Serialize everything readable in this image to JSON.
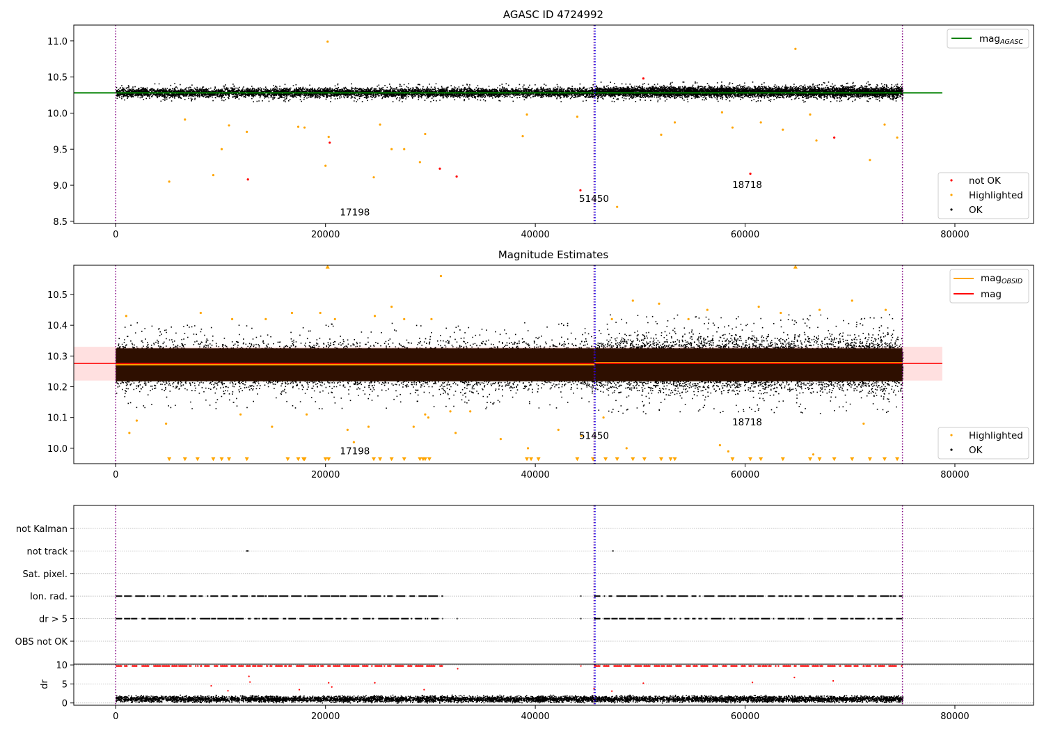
{
  "chart_data": [
    {
      "type": "scatter",
      "title": "AGASC ID 4724992",
      "xlabel": "",
      "ylabel": "",
      "xlim": [
        -4000,
        87500
      ],
      "ylim": [
        8.47,
        11.22
      ],
      "xticks": [
        0,
        20000,
        40000,
        60000,
        80000
      ],
      "yticks": [
        8.5,
        9.0,
        9.5,
        10.0,
        10.5,
        11.0
      ],
      "grid": false,
      "series": [
        {
          "name": "not OK",
          "color": "#ff0000",
          "points": [
            [
              12600,
              9.08
            ],
            [
              20400,
              9.59
            ],
            [
              30900,
              9.23
            ],
            [
              32500,
              9.12
            ],
            [
              44300,
              8.93
            ],
            [
              50300,
              10.48
            ],
            [
              60500,
              9.16
            ],
            [
              68500,
              9.66
            ]
          ]
        },
        {
          "name": "Highlighted",
          "color": "#ffa500",
          "points": [
            [
              5100,
              9.05
            ],
            [
              6600,
              9.91
            ],
            [
              9300,
              9.14
            ],
            [
              10100,
              9.5
            ],
            [
              10800,
              9.83
            ],
            [
              12500,
              9.74
            ],
            [
              17400,
              9.81
            ],
            [
              18000,
              9.8
            ],
            [
              20000,
              9.27
            ],
            [
              20200,
              10.99
            ],
            [
              20300,
              9.67
            ],
            [
              24600,
              9.11
            ],
            [
              25200,
              9.84
            ],
            [
              26300,
              9.5
            ],
            [
              27500,
              9.5
            ],
            [
              29000,
              9.32
            ],
            [
              29500,
              9.71
            ],
            [
              38800,
              9.68
            ],
            [
              39200,
              9.98
            ],
            [
              44000,
              9.95
            ],
            [
              47800,
              8.7
            ],
            [
              52000,
              9.7
            ],
            [
              53300,
              9.87
            ],
            [
              57800,
              10.01
            ],
            [
              58800,
              9.8
            ],
            [
              61500,
              9.87
            ],
            [
              63600,
              9.77
            ],
            [
              64800,
              10.89
            ],
            [
              66200,
              9.98
            ],
            [
              66800,
              9.62
            ],
            [
              71900,
              9.35
            ],
            [
              73300,
              9.84
            ],
            [
              74500,
              9.66
            ]
          ]
        },
        {
          "name": "OK",
          "color": "#000000",
          "band": [
            {
              "x0": 0,
              "x1": 45650,
              "lo": 10.2,
              "hi": 10.38
            },
            {
              "x0": 45650,
              "x1": 75000,
              "lo": 10.2,
              "hi": 10.4
            }
          ]
        },
        {
          "name": "mag_AGASC",
          "color": "#008000",
          "y": 10.28,
          "x0": -4000,
          "x1": 78800
        }
      ],
      "legend": [
        {
          "label": "mag",
          "sub": "AGASC",
          "marker": "line",
          "color": "#008000",
          "location": "top-right"
        },
        {
          "label": "not OK",
          "marker": "dot",
          "color": "#ff0000",
          "location": "bottom-right"
        },
        {
          "label": "Highlighted",
          "marker": "dot",
          "color": "#ffa500",
          "location": "bottom-right"
        },
        {
          "label": "OK",
          "marker": "dot",
          "color": "#000000",
          "location": "bottom-right"
        }
      ],
      "vlines": [
        {
          "x": 0,
          "color": "#800080",
          "style": "dotted"
        },
        {
          "x": 45600,
          "color": "#800080",
          "style": "dotted"
        },
        {
          "x": 45700,
          "color": "#0000ff",
          "style": "dotted"
        },
        {
          "x": 75000,
          "color": "#800080",
          "style": "dotted"
        }
      ],
      "annotations": [
        {
          "text": "17198",
          "x": 22800,
          "y": 8.58
        },
        {
          "text": "51450",
          "x": 45600,
          "y": 8.77
        },
        {
          "text": "18718",
          "x": 60200,
          "y": 8.96
        }
      ]
    },
    {
      "type": "scatter",
      "title": "Magnitude Estimates",
      "xlabel": "",
      "ylabel": "",
      "xlim": [
        -4000,
        87500
      ],
      "ylim": [
        9.95,
        10.595
      ],
      "xticks": [
        0,
        20000,
        40000,
        60000,
        80000
      ],
      "yticks": [
        10.0,
        10.1,
        10.2,
        10.3,
        10.4,
        10.5
      ],
      "grid": false,
      "series": [
        {
          "name": "Highlighted",
          "color": "#ffa500",
          "points": [
            [
              1000,
              10.43
            ],
            [
              1300,
              10.05
            ],
            [
              2000,
              10.09
            ],
            [
              4800,
              10.08
            ],
            [
              8100,
              10.44
            ],
            [
              11100,
              10.42
            ],
            [
              11900,
              10.11
            ],
            [
              14300,
              10.42
            ],
            [
              14900,
              10.07
            ],
            [
              16800,
              10.44
            ],
            [
              18200,
              10.11
            ],
            [
              19500,
              10.44
            ],
            [
              20900,
              10.42
            ],
            [
              22100,
              10.06
            ],
            [
              22700,
              10.02
            ],
            [
              24100,
              10.07
            ],
            [
              24700,
              10.43
            ],
            [
              26300,
              10.46
            ],
            [
              27500,
              10.42
            ],
            [
              28400,
              10.07
            ],
            [
              29500,
              10.11
            ],
            [
              29800,
              10.1
            ],
            [
              30100,
              10.42
            ],
            [
              31000,
              10.56
            ],
            [
              31900,
              10.12
            ],
            [
              32400,
              10.05
            ],
            [
              33800,
              10.12
            ],
            [
              36700,
              10.03
            ],
            [
              39300,
              10.0
            ],
            [
              42200,
              10.06
            ],
            [
              44400,
              10.04
            ],
            [
              46500,
              10.1
            ],
            [
              47300,
              10.42
            ],
            [
              48700,
              10.0
            ],
            [
              49300,
              10.48
            ],
            [
              51800,
              10.47
            ],
            [
              54600,
              10.42
            ],
            [
              56400,
              10.45
            ],
            [
              57600,
              10.01
            ],
            [
              58400,
              9.99
            ],
            [
              61300,
              10.46
            ],
            [
              63400,
              10.44
            ],
            [
              66500,
              9.98
            ],
            [
              67100,
              10.45
            ],
            [
              70200,
              10.48
            ],
            [
              71300,
              10.08
            ],
            [
              73400,
              10.45
            ]
          ]
        },
        {
          "name": "Highlighted",
          "color": "#ffa500",
          "marker": "triangle",
          "y": 9.965,
          "xs": [
            5100,
            6600,
            7800,
            9300,
            10100,
            10800,
            12500,
            16400,
            17400,
            17900,
            18000,
            20000,
            20300,
            24600,
            25200,
            26300,
            27500,
            29000,
            29300,
            29500,
            29900,
            39200,
            39600,
            40300,
            44000,
            45500,
            46700,
            47800,
            49300,
            50400,
            52000,
            52900,
            53300,
            58800,
            60500,
            61500,
            63600,
            66200,
            67100,
            68500,
            70200,
            71900,
            73300,
            74500
          ]
        },
        {
          "name": "Highlighted",
          "color": "#ffa500",
          "marker": "triangle-up",
          "y": 10.59,
          "xs": [
            20200,
            64800
          ]
        },
        {
          "name": "OK",
          "color": "#000000",
          "band": [
            {
              "x0": 0,
              "x1": 45650,
              "lo": 10.17,
              "hi": 10.37
            },
            {
              "x0": 45650,
              "x1": 75000,
              "lo": 10.16,
              "hi": 10.39
            }
          ]
        },
        {
          "name": "mag_OBSID",
          "color": "#ffa500",
          "steps": [
            {
              "x0": 0,
              "x1": 45650,
              "y": 10.272
            },
            {
              "x0": 45650,
              "x1": 75000,
              "y": 10.278
            }
          ]
        },
        {
          "name": "mag",
          "color": "#ff0000",
          "y": 10.276,
          "band": [
            10.22,
            10.33
          ],
          "x0": -4000,
          "x1": 78800
        }
      ],
      "legend": [
        {
          "label": "mag",
          "sub": "OBSID",
          "marker": "line",
          "color": "#ffa500",
          "location": "top-right"
        },
        {
          "label": "mag",
          "marker": "line",
          "color": "#ff0000",
          "location": "top-right"
        },
        {
          "label": "Highlighted",
          "marker": "dot",
          "color": "#ffa500",
          "location": "bottom-right"
        },
        {
          "label": "OK",
          "marker": "dot",
          "color": "#000000",
          "location": "bottom-right"
        }
      ],
      "vlines": [
        {
          "x": 0,
          "color": "#800080",
          "style": "dotted"
        },
        {
          "x": 45600,
          "color": "#800080",
          "style": "dotted"
        },
        {
          "x": 45700,
          "color": "#0000ff",
          "style": "dotted"
        },
        {
          "x": 75000,
          "color": "#800080",
          "style": "dotted"
        }
      ],
      "annotations": [
        {
          "text": "17198",
          "x": 22800,
          "y": 9.98
        },
        {
          "text": "51450",
          "x": 45600,
          "y": 10.03
        },
        {
          "text": "18718",
          "x": 60200,
          "y": 10.075
        }
      ]
    },
    {
      "type": "scatter",
      "title": "",
      "xlabel": "",
      "ylabel": "",
      "xlim": [
        -4000,
        87500
      ],
      "categories": [
        "not Kalman",
        "not track",
        "Sat. pixel.",
        "Ion. rad.",
        "dr > 5",
        "OBS not OK"
      ],
      "grid": true,
      "series": [
        {
          "name": "not track",
          "color": "#000000",
          "xs": [
            12500,
            12600,
            47400
          ]
        },
        {
          "name": "Ion. rad.",
          "color": "#000000",
          "segments": [
            [
              0,
              31200
            ],
            [
              44300,
              44400
            ],
            [
              45600,
              75000
            ]
          ]
        },
        {
          "name": "dr > 5",
          "color": "#000000",
          "segments": [
            [
              0,
              31200
            ],
            [
              32500,
              32600
            ],
            [
              44300,
              44400
            ],
            [
              45600,
              75000
            ]
          ]
        }
      ],
      "vlines": [
        {
          "x": 0,
          "color": "#800080",
          "style": "dotted"
        },
        {
          "x": 45600,
          "color": "#800080",
          "style": "dotted"
        },
        {
          "x": 45700,
          "color": "#0000ff",
          "style": "dotted"
        },
        {
          "x": 75000,
          "color": "#800080",
          "style": "dotted"
        }
      ]
    },
    {
      "type": "scatter",
      "title": "",
      "xlabel": "",
      "ylabel": "dr",
      "xlim": [
        -4000,
        87500
      ],
      "ylim": [
        -0.6,
        10.2
      ],
      "xticks": [
        0,
        20000,
        40000,
        60000,
        80000
      ],
      "yticks": [
        0,
        5,
        10
      ],
      "grid": true,
      "series": [
        {
          "name": "dr",
          "color": "#000000",
          "band": [
            {
              "x0": 0,
              "x1": 75000,
              "lo": 0.0,
              "hi": 2.3
            }
          ]
        },
        {
          "name": "dr > 5",
          "color": "#ff0000",
          "y": 9.75,
          "segments": [
            [
              0,
              31200
            ],
            [
              44300,
              44400
            ],
            [
              45600,
              75000
            ]
          ]
        },
        {
          "name": "dr > 5",
          "color": "#ff0000",
          "points": [
            [
              9100,
              4.5
            ],
            [
              10700,
              3.2
            ],
            [
              12700,
              7.0
            ],
            [
              12800,
              5.5
            ],
            [
              17500,
              3.5
            ],
            [
              20300,
              5.3
            ],
            [
              20600,
              4.2
            ],
            [
              24700,
              5.3
            ],
            [
              29400,
              3.5
            ],
            [
              32600,
              9.0
            ],
            [
              45600,
              3.8
            ],
            [
              47300,
              3.1
            ],
            [
              50300,
              5.2
            ],
            [
              60700,
              5.4
            ],
            [
              64700,
              6.7
            ],
            [
              68400,
              5.8
            ]
          ]
        }
      ],
      "vlines": [
        {
          "x": 0,
          "color": "#800080",
          "style": "dotted"
        },
        {
          "x": 45600,
          "color": "#800080",
          "style": "dotted"
        },
        {
          "x": 45700,
          "color": "#0000ff",
          "style": "dotted"
        },
        {
          "x": 75000,
          "color": "#800080",
          "style": "dotted"
        }
      ]
    }
  ]
}
